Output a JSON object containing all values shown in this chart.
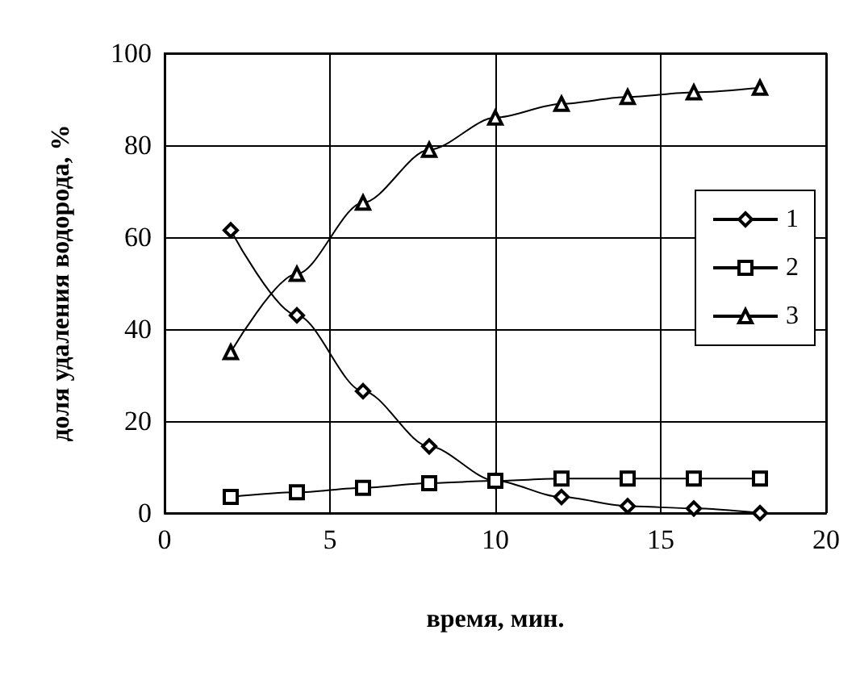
{
  "chart_data": {
    "type": "line",
    "xlabel": "время, мин.",
    "ylabel": "доля удаления водорода, %",
    "x": [
      2,
      4,
      6,
      8,
      10,
      12,
      14,
      16,
      18
    ],
    "series": [
      {
        "name": "1",
        "color": "#000000",
        "marker": "diamond",
        "values": [
          61.5,
          43,
          26.5,
          14.5,
          7,
          3.5,
          1.5,
          1,
          0
        ]
      },
      {
        "name": "2",
        "color": "#000000",
        "marker": "square",
        "values": [
          3.5,
          4.5,
          5.5,
          6.5,
          7,
          7.5,
          7.5,
          7.5,
          7.5
        ]
      },
      {
        "name": "3",
        "color": "#000000",
        "marker": "triangle",
        "values": [
          35,
          52,
          67.5,
          79,
          86,
          89,
          90.5,
          91.5,
          92.5
        ]
      }
    ],
    "xlim": [
      0,
      20
    ],
    "xticks": [
      0,
      5,
      10,
      15,
      20
    ],
    "ylim": [
      0,
      100
    ],
    "yticks": [
      0,
      20,
      40,
      60,
      80,
      100
    ],
    "grid": true,
    "legend": "right",
    "line_style": "solid"
  }
}
